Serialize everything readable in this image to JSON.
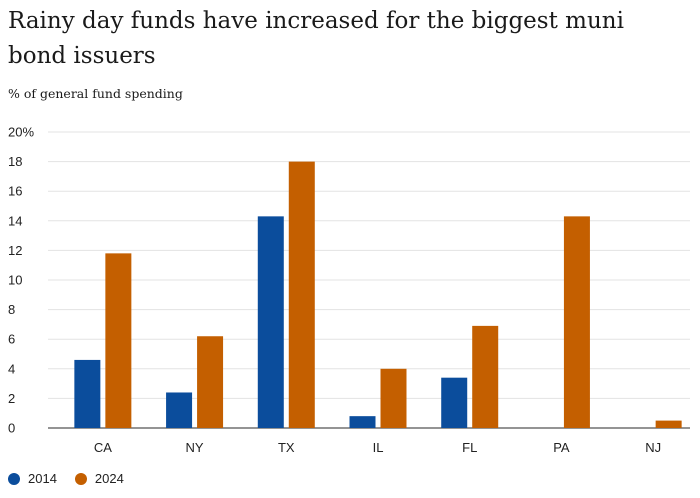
{
  "chart_data": {
    "type": "bar",
    "title": "Rainy day funds have increased for the biggest muni bond issuers",
    "subtitle": "% of general fund spending",
    "categories": [
      "CA",
      "NY",
      "TX",
      "IL",
      "FL",
      "PA",
      "NJ"
    ],
    "series": [
      {
        "name": "2014",
        "color": "#0b4d9c",
        "values": [
          4.6,
          2.4,
          14.3,
          0.8,
          3.4,
          0.0,
          0.0
        ]
      },
      {
        "name": "2024",
        "color": "#c45f00",
        "values": [
          11.8,
          6.2,
          18.0,
          4.0,
          6.9,
          14.3,
          0.5
        ]
      }
    ],
    "ylim": [
      0,
      20
    ],
    "yticks": [
      0,
      2,
      4,
      6,
      8,
      10,
      12,
      14,
      16,
      18,
      20
    ],
    "ytick_labels": [
      "0",
      "2",
      "4",
      "6",
      "8",
      "10",
      "12",
      "14",
      "16",
      "18",
      "20%"
    ],
    "grid": true,
    "legend_position": "bottom-left"
  }
}
